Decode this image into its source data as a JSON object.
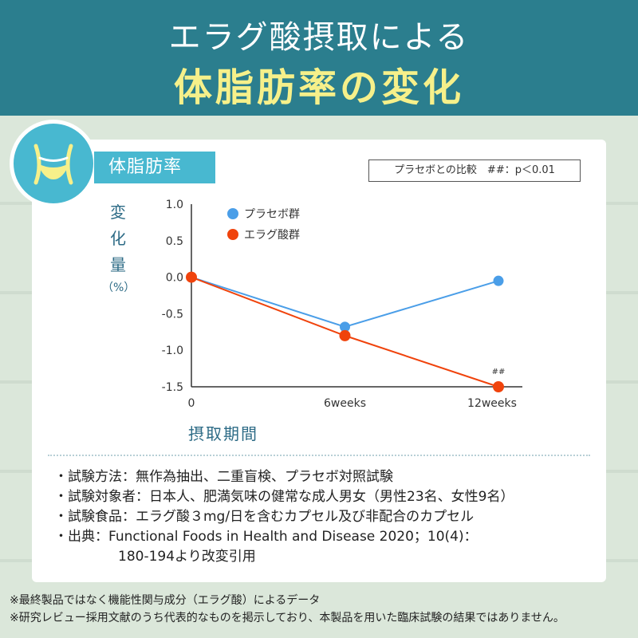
{
  "header": {
    "title_line1": "エラグ酸摂取による",
    "title_line2": "体脂肪率の変化"
  },
  "tag_label": "体脂肪率",
  "icon_name": "waist-icon",
  "significance_note": "プラセボとの比較　##：p＜0.01",
  "colors": {
    "header_bg": "#2b7e8e",
    "accent": "#48b8d0",
    "title_highlight": "#f6f08a",
    "placebo": "#4a9ee8",
    "ellagic": "#f0430c"
  },
  "chart_data": {
    "type": "line",
    "ylabel": "変化量",
    "yunit": "（%）",
    "xlabel": "摂取期間",
    "categories": [
      "0",
      "6weeks",
      "12weeks"
    ],
    "ylim": [
      -1.5,
      1.0
    ],
    "yticks": [
      "1.0",
      "0.5",
      "0.0",
      "-0.5",
      "-1.0",
      "-1.5"
    ],
    "ytick_values": [
      1.0,
      0.5,
      0.0,
      -0.5,
      -1.0,
      -1.5
    ],
    "legend_position": "top-left",
    "series": [
      {
        "name": "プラセボ群",
        "values": [
          0.0,
          -0.68,
          -0.05
        ]
      },
      {
        "name": "エラグ酸群",
        "values": [
          0.0,
          -0.8,
          -1.5
        ]
      }
    ],
    "annotation": {
      "text": "##",
      "series": 1,
      "index": 2
    }
  },
  "notes": [
    "・試験方法：無作為抽出、二重盲検、プラセボ対照試験",
    "・試験対象者：日本人、肥満気味の健常な成人男女（男性23名、女性9名）",
    "・試験食品：エラグ酸３mg/日を含むカプセル及び非配合のカプセル",
    "・出典：Functional Foods in Health and Disease 2020；10(4)：",
    "180-194より改変引用"
  ],
  "footnotes": [
    "※最終製品ではなく機能性関与成分（エラグ酸）によるデータ",
    "※研究レビュー採用文献のうち代表的なものを掲示しており、本製品を用いた臨床試験の結果ではありません。"
  ]
}
